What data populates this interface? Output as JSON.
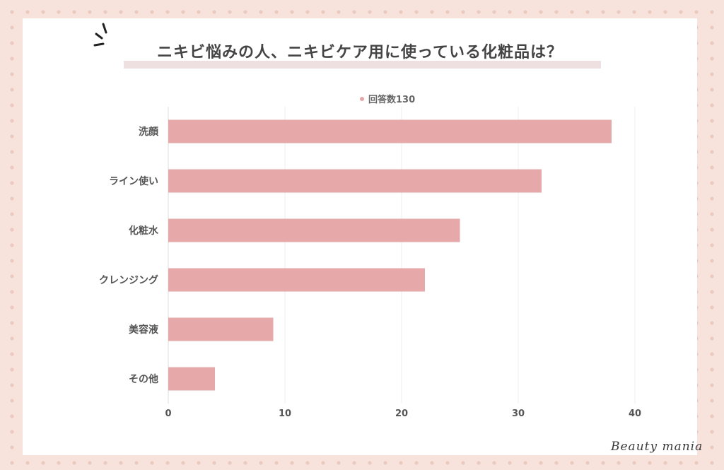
{
  "title": "ニキビ悩みの人、ニキビケア用に使っている化粧品は？",
  "legend_label": "回答数130",
  "brand": "Beauty mania",
  "colors": {
    "bar": "#e6a8a9",
    "grid": "#ececec",
    "text": "#444444"
  },
  "chart_data": {
    "type": "bar",
    "orientation": "horizontal",
    "categories": [
      "洗顔",
      "ライン使い",
      "化粧水",
      "クレンジング",
      "美容液",
      "その他"
    ],
    "series": [
      {
        "name": "回答数130",
        "values": [
          38,
          32,
          25,
          22,
          9,
          4
        ]
      }
    ],
    "xlim": [
      0,
      40
    ],
    "xticks": [
      0,
      10,
      20,
      30,
      40
    ],
    "legend_position": "top",
    "grid": true
  }
}
